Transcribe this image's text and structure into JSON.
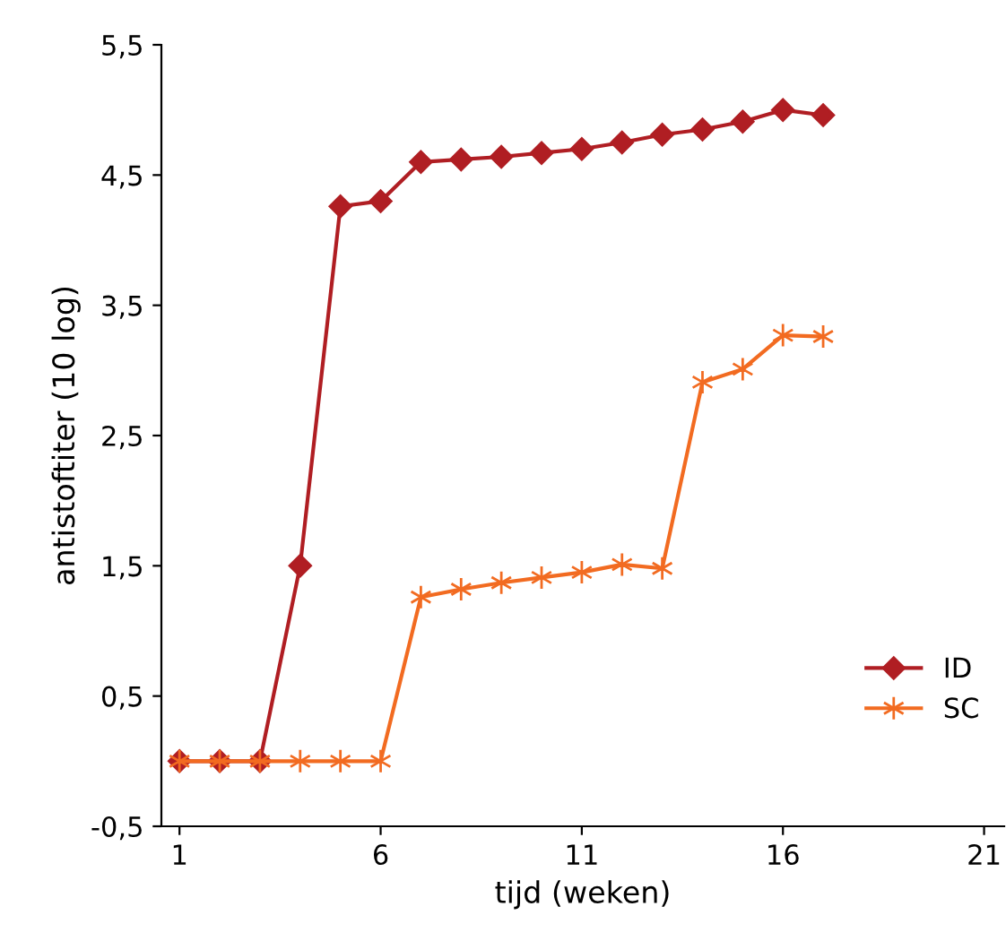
{
  "chart_data": {
    "type": "line",
    "xlabel": "tijd (weken)",
    "ylabel": "antistoftiter (10 log)",
    "x": [
      1,
      2,
      3,
      4,
      5,
      6,
      7,
      8,
      9,
      10,
      11,
      12,
      13,
      14,
      15,
      16,
      17
    ],
    "series": [
      {
        "name": "ID",
        "color": "#b01e23",
        "marker": "diamond",
        "values": [
          0,
          0,
          0,
          1.5,
          4.26,
          4.3,
          4.6,
          4.62,
          4.64,
          4.67,
          4.7,
          4.75,
          4.81,
          4.85,
          4.91,
          5.0,
          4.96
        ]
      },
      {
        "name": "SC",
        "color": "#f26b21",
        "marker": "cross",
        "values": [
          0,
          0,
          0,
          0,
          0,
          0,
          1.26,
          1.32,
          1.37,
          1.41,
          1.45,
          1.51,
          1.48,
          2.91,
          3.01,
          3.27,
          3.26
        ]
      }
    ],
    "xlim": [
      0.55,
      21.5
    ],
    "xticks": [
      1,
      6,
      11,
      16,
      21
    ],
    "ylim": [
      -0.5,
      5.5
    ],
    "yticks": [
      {
        "value": -0.5,
        "label": "-0,5"
      },
      {
        "value": 0.5,
        "label": "0,5"
      },
      {
        "value": 1.5,
        "label": "1,5"
      },
      {
        "value": 2.5,
        "label": "2,5"
      },
      {
        "value": 3.5,
        "label": "3,5"
      },
      {
        "value": 4.5,
        "label": "4,5"
      },
      {
        "value": 5.5,
        "label": "5,5"
      }
    ],
    "grid": false,
    "legend": "bottom right",
    "line_style": "solid"
  }
}
